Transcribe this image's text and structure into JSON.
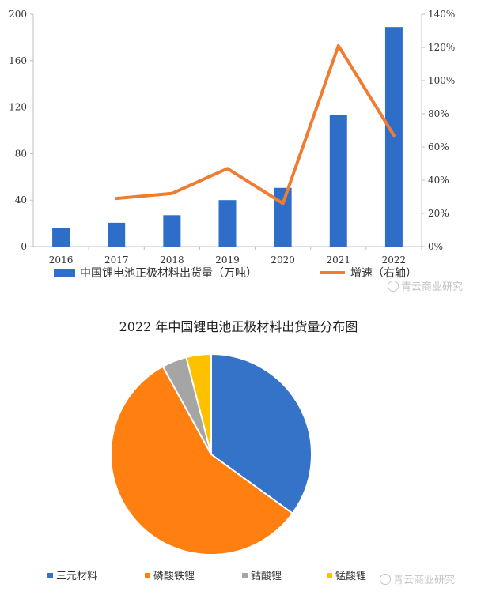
{
  "chart_data": [
    {
      "type": "bar+line",
      "categories": [
        "2016",
        "2017",
        "2018",
        "2019",
        "2020",
        "2021",
        "2022"
      ],
      "series": [
        {
          "name": "中国锂电池正极材料出货量（万吨）",
          "kind": "bar",
          "axis": "left",
          "values": [
            16,
            20.5,
            27,
            40,
            50.5,
            113,
            189
          ],
          "color": "#2f6ec8"
        },
        {
          "name": "增速（右轴）",
          "kind": "line",
          "axis": "right",
          "values": [
            null,
            29,
            32,
            47,
            26,
            121,
            67
          ],
          "color": "#ee7d31"
        }
      ],
      "ylim_left": [
        0,
        200
      ],
      "yticks_left": [
        "0",
        "40",
        "80",
        "120",
        "160",
        "200"
      ],
      "ylim_right": [
        0,
        140
      ],
      "yticks_right": [
        "0%",
        "20%",
        "40%",
        "60%",
        "80%",
        "100%",
        "120%",
        "140%"
      ],
      "grid": false,
      "legend_position": "bottom"
    },
    {
      "type": "pie",
      "title": "2022 年中国锂电池正极材料出货量分布图",
      "labels": [
        "三元材料",
        "磷酸铁锂",
        "钴酸锂",
        "锰酸锂"
      ],
      "values": [
        35,
        57,
        4,
        4
      ],
      "colors": [
        "#3473c8",
        "#ff7f10",
        "#a5a5a5",
        "#ffc000"
      ],
      "legend_position": "bottom"
    }
  ],
  "watermarks": [
    "青云商业研究",
    "青云商业研究"
  ]
}
